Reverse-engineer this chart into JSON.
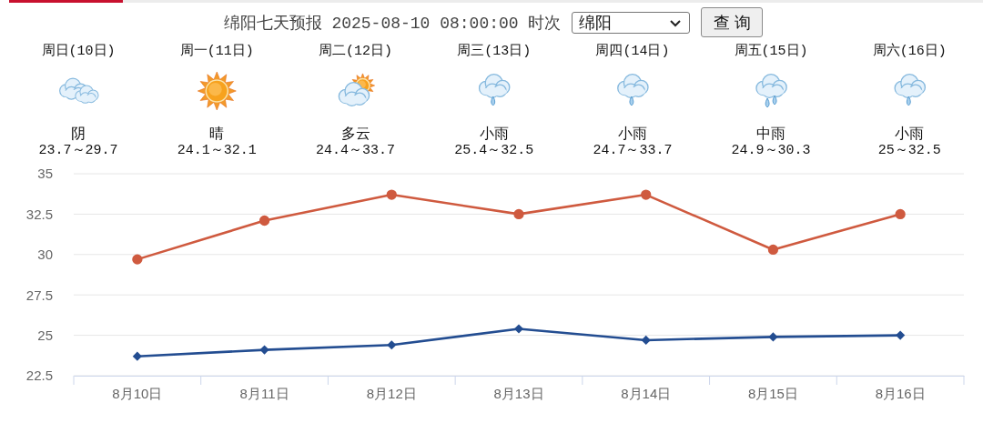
{
  "chart_data": {
    "type": "line",
    "title": "绵阳七天预报 2025-08-10 08:00:00 时次",
    "categories": [
      "8月10日",
      "8月11日",
      "8月12日",
      "8月13日",
      "8月14日",
      "8月15日",
      "8月16日"
    ],
    "series": [
      {
        "color": "#cf5a3f",
        "marker": "circle",
        "values": [
          29.7,
          32.1,
          33.7,
          32.5,
          33.7,
          30.3,
          32.5
        ]
      },
      {
        "color": "#234d91",
        "marker": "diamond",
        "values": [
          23.7,
          24.1,
          24.4,
          25.4,
          24.7,
          24.9,
          25
        ]
      }
    ],
    "ylim": [
      22.5,
      35
    ],
    "yticks": [
      22.5,
      25,
      27.5,
      30,
      32.5,
      35
    ],
    "grid": "y",
    "annotations": [
      "绵阳",
      "查 询",
      "周日(10日)",
      "阴",
      "23.7～29.7",
      "周一(11日)",
      "晴",
      "24.1～32.1",
      "周二(12日)",
      "多云",
      "24.4～33.7",
      "周三(13日)",
      "小雨",
      "25.4～32.5",
      "周四(14日)",
      "小雨",
      "24.7～33.7",
      "周五(15日)",
      "中雨",
      "24.9～30.3",
      "周六(16日)",
      "小雨",
      "25～32.5"
    ]
  }
}
